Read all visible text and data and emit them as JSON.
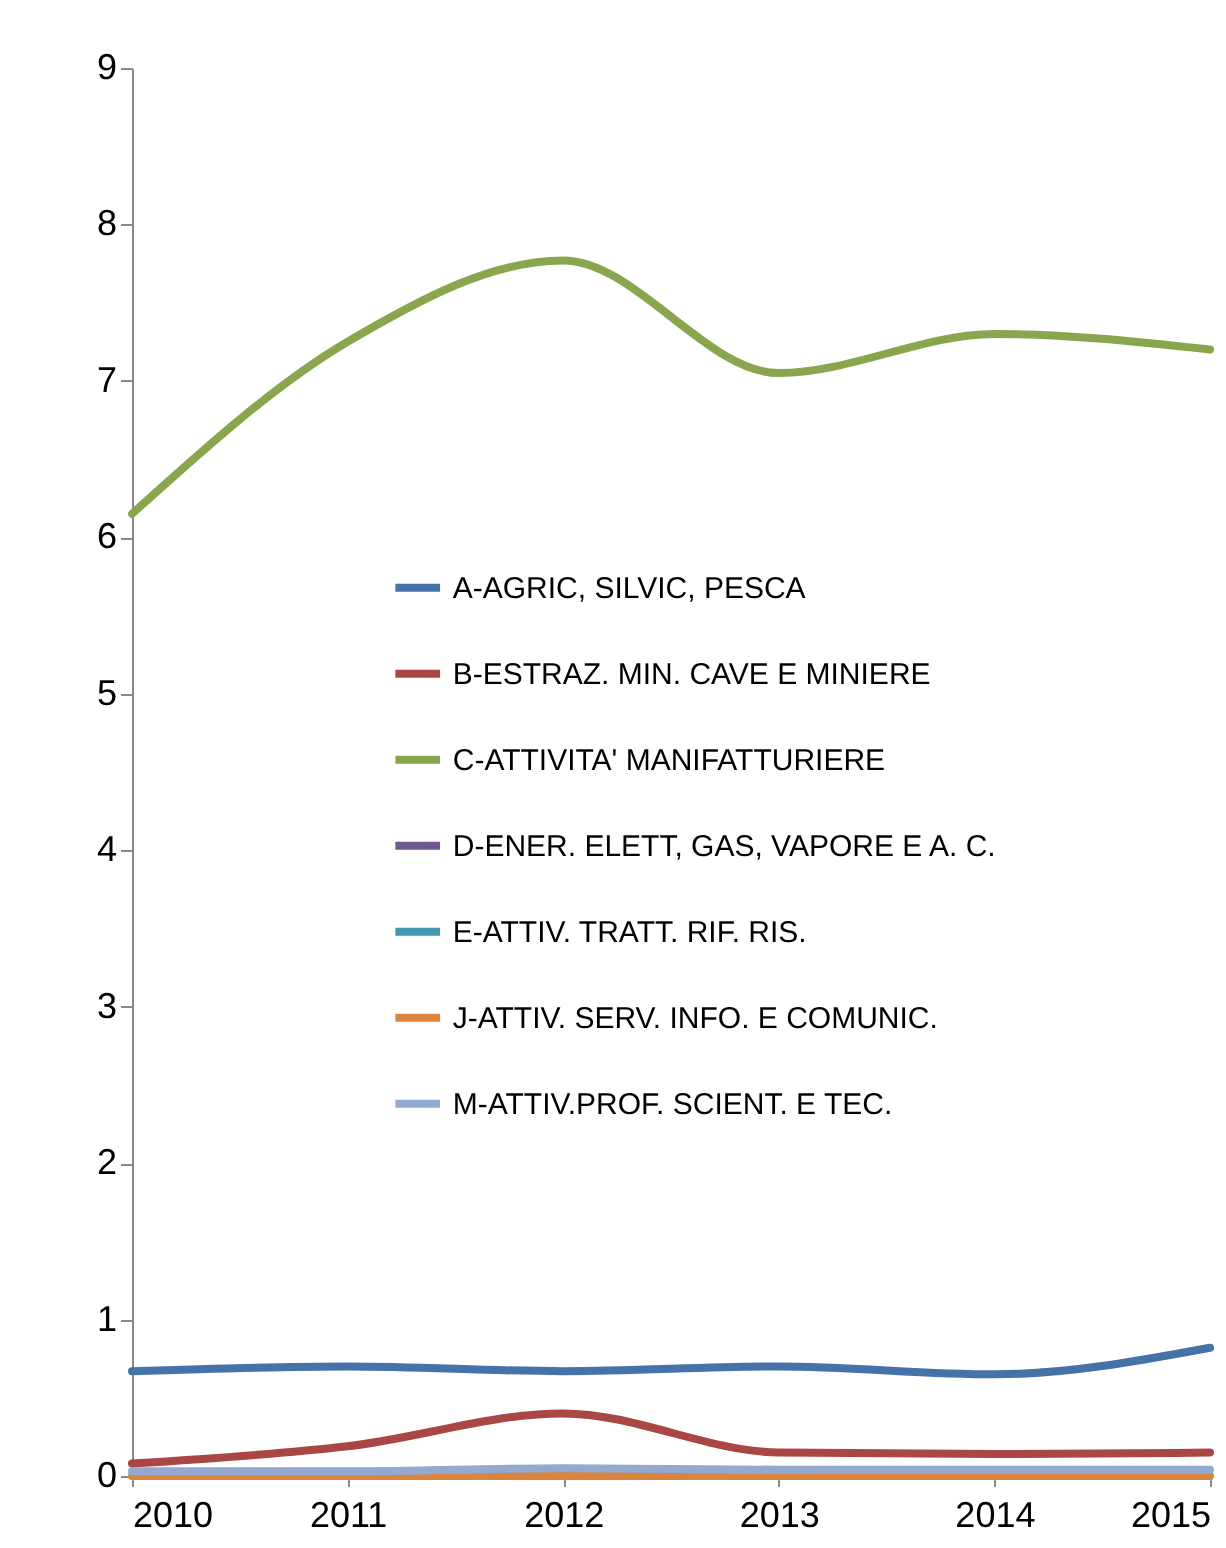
{
  "chart_data": {
    "type": "line",
    "categories": [
      "2010",
      "2011",
      "2012",
      "2013",
      "2014",
      "2015"
    ],
    "series": [
      {
        "name": "A-AGRIC, SILVIC, PESCA",
        "color": "#4572a7",
        "values": [
          0.67,
          0.7,
          0.67,
          0.7,
          0.65,
          0.82
        ]
      },
      {
        "name": "B-ESTRAZ. MIN. CAVE E MINIERE",
        "color": "#aa4643",
        "values": [
          0.08,
          0.19,
          0.4,
          0.15,
          0.14,
          0.15
        ]
      },
      {
        "name": "C-ATTIVITA' MANIFATTURIERE",
        "color": "#89a54e",
        "values": [
          6.15,
          7.25,
          7.77,
          7.05,
          7.3,
          7.2
        ]
      },
      {
        "name": "D-ENER. ELETT, GAS, VAPORE E A. C.",
        "color": "#71588f",
        "values": [
          null,
          null,
          null,
          null,
          null,
          null
        ]
      },
      {
        "name": "E-ATTIV. TRATT. RIF. RIS.",
        "color": "#4198af",
        "values": [
          null,
          null,
          null,
          null,
          null,
          null
        ]
      },
      {
        "name": "J-ATTIV. SERV. INFO. E COMUNIC.",
        "color": "#db843d",
        "values": [
          0,
          0,
          0,
          0,
          0,
          0
        ]
      },
      {
        "name": "M-ATTIV.PROF. SCIENT. E TEC.",
        "color": "#93a9cf",
        "values": [
          0.03,
          0.03,
          0.05,
          0.04,
          0.04,
          0.04
        ]
      }
    ],
    "ylim": [
      0,
      9
    ],
    "yticks": [
      0,
      1,
      2,
      3,
      4,
      5,
      6,
      7,
      8,
      9
    ],
    "grid": false,
    "legend": "left",
    "marker": "none",
    "line_style": "solid"
  }
}
